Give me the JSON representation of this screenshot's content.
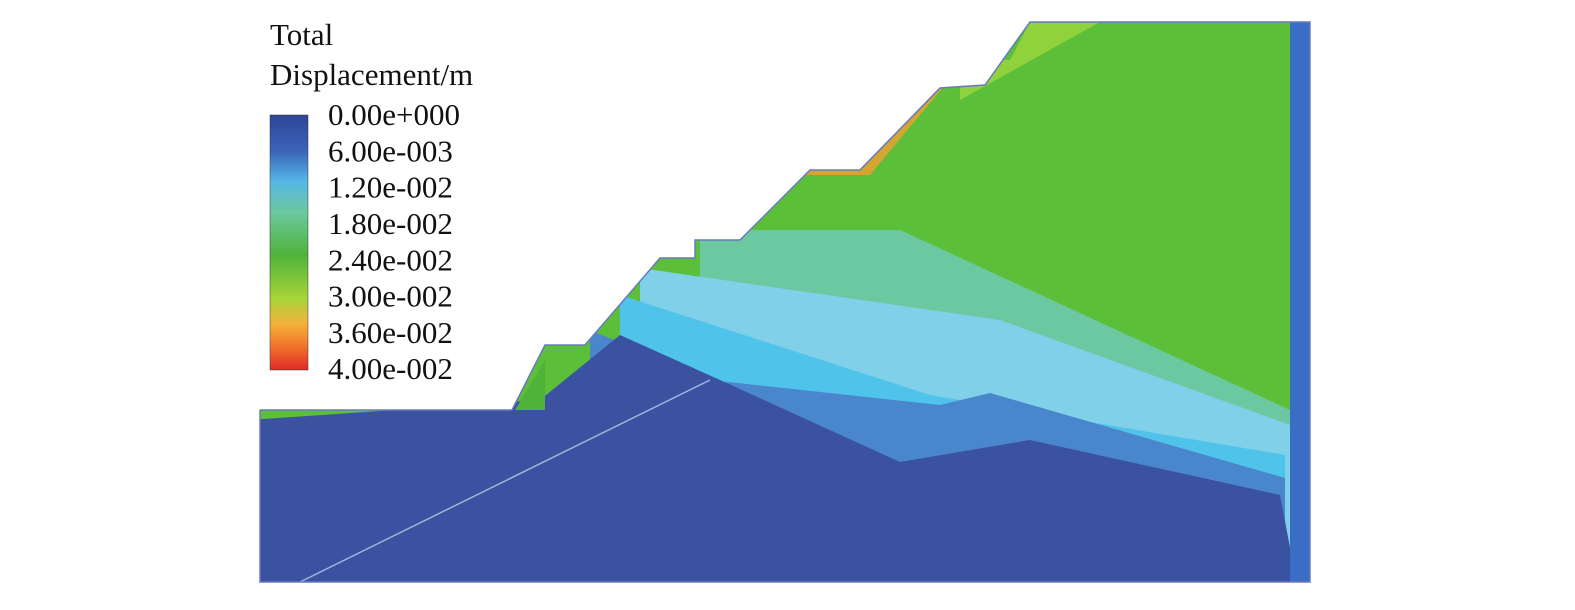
{
  "legend": {
    "title": [
      "Total",
      "Displacement/m"
    ],
    "labels": [
      "0.00e+000",
      "6.00e-003",
      "1.20e-002",
      "1.80e-002",
      "2.40e-002",
      "3.00e-002",
      "3.60e-002",
      "4.00e-002"
    ]
  }
}
